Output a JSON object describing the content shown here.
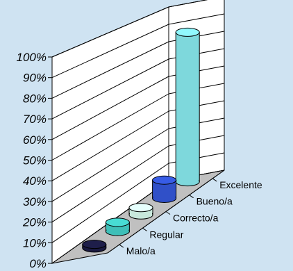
{
  "chart_data": {
    "type": "bar",
    "style": "3d-cylinder",
    "categories": [
      "Malo/a",
      "Regular",
      "Correcto/a",
      "Bueno/a",
      "Excelente"
    ],
    "values": [
      2,
      5,
      4,
      10,
      82
    ],
    "y_ticks": [
      "0%",
      "10%",
      "20%",
      "30%",
      "40%",
      "50%",
      "60%",
      "70%",
      "80%",
      "90%",
      "100%"
    ],
    "ylim": [
      0,
      100
    ],
    "grid": true,
    "colors": {
      "background": "#cfe3f2",
      "walls": "#ffffff",
      "floor": "#c0c0c0",
      "bars": [
        "#1a1a40",
        "#3fbfb8",
        "#c8e8dc",
        "#3050c8",
        "#7ed8dc"
      ]
    }
  }
}
